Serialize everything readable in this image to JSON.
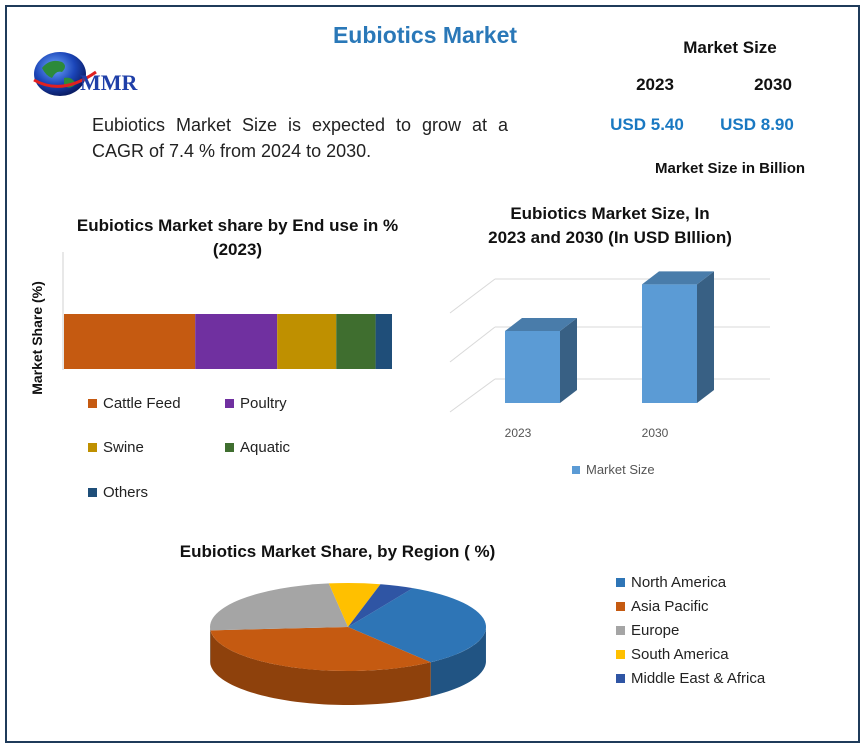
{
  "header": {
    "title": "Eubiotics Market",
    "logo_text": "MMR",
    "description": "Eubiotics Market Size is expected to grow at a CAGR of 7.4 % from 2024 to 2030."
  },
  "market_size": {
    "heading": "Market Size",
    "year1": "2023",
    "year2": "2030",
    "value1": "USD 5.40",
    "value2": "USD 8.90",
    "unit_note": "Market Size in Billion"
  },
  "colors": {
    "cattle_feed": "#c55a11",
    "poultry": "#7030a0",
    "swine": "#bf9000",
    "aquatic": "#3f6e2f",
    "others": "#1f4e79",
    "bar_blue": "#5b9bd5",
    "north_america": "#2e75b6",
    "asia_pacific": "#c55a11",
    "europe": "#a5a5a5",
    "south_america": "#ffc000",
    "mea": "#2f55a4"
  },
  "chart_data": [
    {
      "type": "bar",
      "orientation": "horizontal-stacked",
      "title": "Eubiotics Market share by End use in % (2023)",
      "title_line1": "Eubiotics Market share by End use in %",
      "title_line2": "(2023)",
      "ylabel": "Market Share (%)",
      "series": [
        {
          "name": "Cattle Feed",
          "values": [
            40
          ]
        },
        {
          "name": "Poultry",
          "values": [
            25
          ]
        },
        {
          "name": "Swine",
          "values": [
            18
          ]
        },
        {
          "name": "Aquatic",
          "values": [
            12
          ]
        },
        {
          "name": "Others",
          "values": [
            5
          ]
        }
      ],
      "legend_position": "bottom"
    },
    {
      "type": "bar",
      "title": "Eubiotics Market Size, In 2023 and 2030 (In USD BIllion)",
      "title_line1": "Eubiotics Market Size, In",
      "title_line2": "2023 and 2030 (In USD BIllion)",
      "categories": [
        "2023",
        "2030"
      ],
      "series": [
        {
          "name": "Market Size",
          "values": [
            5.4,
            8.9
          ]
        }
      ],
      "ylim": [
        0,
        12
      ],
      "grid": true,
      "legend_position": "bottom"
    },
    {
      "type": "pie",
      "title": "Eubiotics Market Share, by Region ( %)",
      "labels": [
        "North America",
        "Asia Pacific",
        "Europe",
        "South America",
        "Middle East & Africa"
      ],
      "values": [
        32,
        34,
        24,
        6,
        4
      ],
      "legend_position": "right"
    }
  ]
}
